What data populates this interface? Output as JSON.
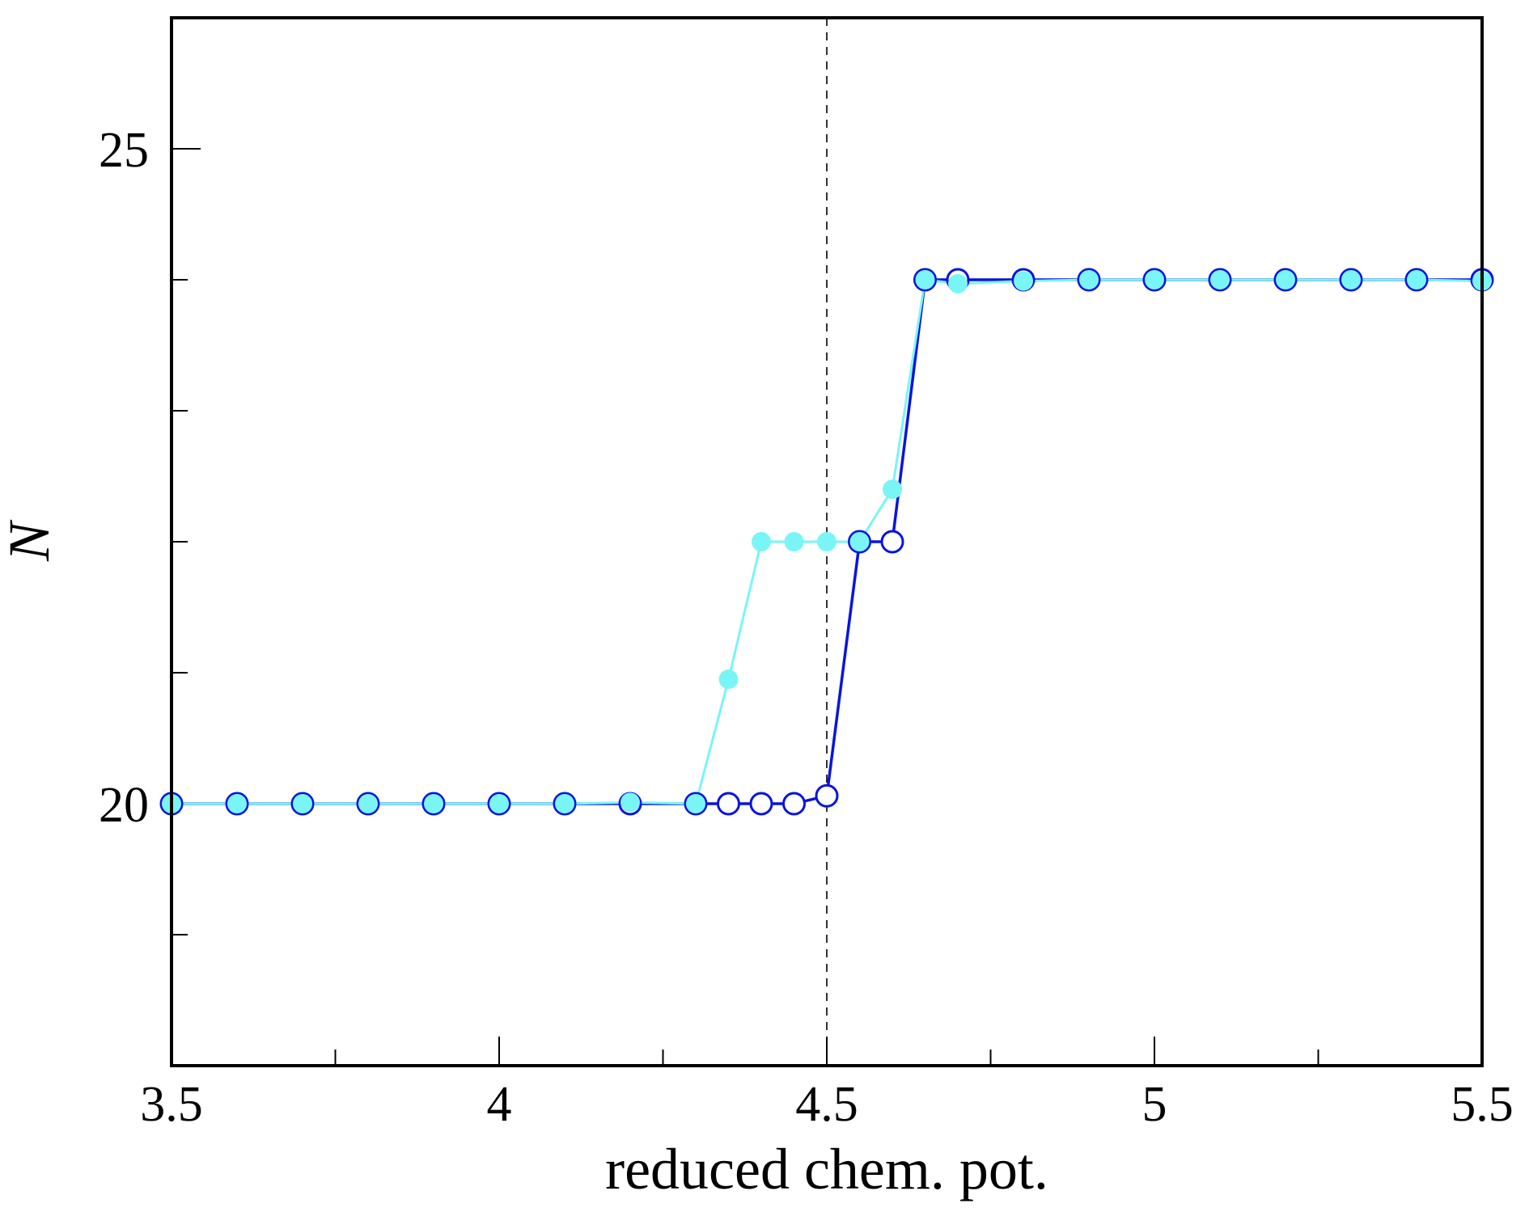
{
  "chart_data": {
    "type": "line",
    "title": "",
    "xlabel": "reduced chem. pot.",
    "ylabel": "N",
    "xlim": [
      3.5,
      5.5
    ],
    "ylim": [
      18,
      26
    ],
    "x_ticks_major": [
      3.5,
      4,
      4.5,
      5,
      5.5
    ],
    "x_ticks_minor": [
      3.75,
      4.25,
      4.75,
      5.25
    ],
    "x_tick_labels": [
      "3.5",
      "4",
      "4.5",
      "5",
      "5.5"
    ],
    "y_ticks_major": [
      20,
      25
    ],
    "y_ticks_minor": [
      19,
      21,
      22,
      23,
      24
    ],
    "y_tick_labels": [
      "20",
      "25"
    ],
    "reference_line": {
      "x": 4.5,
      "style": "dashed",
      "color": "#000000"
    },
    "grid": false,
    "legend": "none",
    "series": [
      {
        "color": "#0a14dc",
        "marker": "open-circle",
        "x": [
          3.5,
          3.6,
          3.7,
          3.8,
          3.9,
          4.0,
          4.1,
          4.2,
          4.3,
          4.35,
          4.4,
          4.45,
          4.5,
          4.55,
          4.6,
          4.65,
          4.7,
          4.8,
          4.9,
          5.0,
          5.1,
          5.2,
          5.3,
          5.4,
          5.5
        ],
        "y": [
          20.0,
          20.0,
          20.0,
          20.0,
          20.0,
          20.0,
          20.0,
          20.0,
          20.0,
          20.0,
          20.0,
          20.0,
          20.06,
          22.0,
          22.0,
          24.0,
          24.0,
          24.0,
          24.0,
          24.0,
          24.0,
          24.0,
          24.0,
          24.0,
          24.0
        ]
      },
      {
        "color": "#7af5f5",
        "marker": "filled-circle",
        "x": [
          3.5,
          3.6,
          3.7,
          3.8,
          3.9,
          4.0,
          4.1,
          4.2,
          4.3,
          4.35,
          4.4,
          4.45,
          4.5,
          4.55,
          4.6,
          4.65,
          4.7,
          4.8,
          4.9,
          5.0,
          5.1,
          5.2,
          5.3,
          5.4,
          5.5
        ],
        "y": [
          20.0,
          20.0,
          20.0,
          20.0,
          20.0,
          20.0,
          20.0,
          20.01,
          20.0,
          20.95,
          22.0,
          22.0,
          22.0,
          22.0,
          22.4,
          24.0,
          23.97,
          23.99,
          24.0,
          24.0,
          24.0,
          24.0,
          24.0,
          24.0,
          23.99
        ]
      }
    ]
  }
}
